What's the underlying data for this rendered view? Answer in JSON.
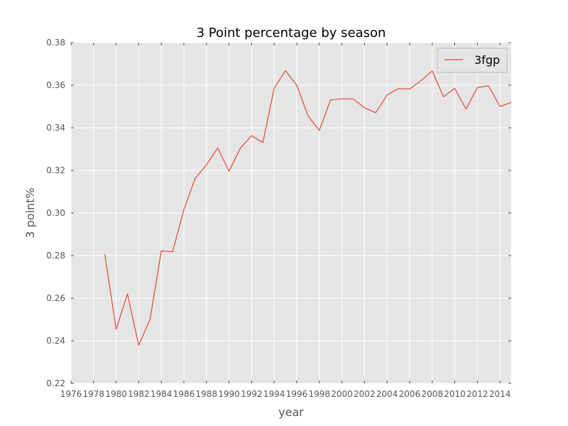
{
  "chart_data": {
    "type": "line",
    "title": "3 Point percentage by season",
    "xlabel": "year",
    "ylabel": "3 point%",
    "xlim": [
      1976,
      2015
    ],
    "ylim": [
      0.22,
      0.38
    ],
    "x_ticks": [
      1976,
      1978,
      1980,
      1982,
      1984,
      1986,
      1988,
      1990,
      1992,
      1994,
      1996,
      1998,
      2000,
      2002,
      2004,
      2006,
      2008,
      2010,
      2012,
      2014
    ],
    "y_ticks": [
      0.22,
      0.24,
      0.26,
      0.28,
      0.3,
      0.32,
      0.34,
      0.36,
      0.38
    ],
    "y_tick_labels": [
      "0.22",
      "0.24",
      "0.26",
      "0.28",
      "0.30",
      "0.32",
      "0.34",
      "0.36",
      "0.38"
    ],
    "grid": true,
    "legend_position": "top-right",
    "series": [
      {
        "name": "3fgp",
        "color": "#E24A33",
        "x": [
          1979,
          1980,
          1981,
          1982,
          1983,
          1984,
          1985,
          1986,
          1987,
          1988,
          1989,
          1990,
          1991,
          1992,
          1993,
          1994,
          1995,
          1996,
          1997,
          1998,
          1999,
          2000,
          2001,
          2002,
          2003,
          2004,
          2005,
          2006,
          2007,
          2008,
          2009,
          2010,
          2011,
          2012,
          2013,
          2014,
          2015
        ],
        "y": [
          0.2805,
          0.2454,
          0.262,
          0.2379,
          0.25,
          0.2822,
          0.2818,
          0.3016,
          0.3162,
          0.3226,
          0.3305,
          0.3196,
          0.3304,
          0.3363,
          0.3331,
          0.3586,
          0.3668,
          0.36,
          0.3456,
          0.3388,
          0.3531,
          0.3536,
          0.3536,
          0.3494,
          0.3471,
          0.3554,
          0.3584,
          0.3582,
          0.3621,
          0.3667,
          0.3546,
          0.3585,
          0.3488,
          0.3589,
          0.3597,
          0.35,
          0.3519
        ]
      }
    ]
  },
  "colors": {
    "plot_background": "#E5E5E5",
    "grid": "#FFFFFF",
    "tick_label": "#555555"
  }
}
